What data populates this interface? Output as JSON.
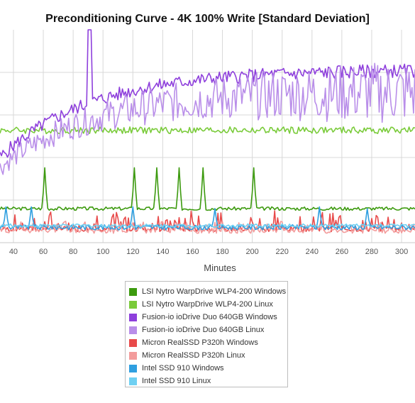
{
  "chart_data": {
    "type": "line",
    "title": "Preconditioning Curve - 4K 100% Write [Standard Deviation]",
    "xlabel": "Minutes",
    "ylabel": "",
    "x_ticks": [
      40,
      60,
      80,
      100,
      120,
      140,
      160,
      180,
      200,
      220,
      240,
      260,
      280,
      300
    ],
    "xlim": [
      31,
      309
    ],
    "grid": true,
    "legend_position": "bottom",
    "series": [
      {
        "name": "LSI Nytro WarpDrive WLP4-200 Windows",
        "color": "#3c9a0e",
        "profile": "spiky_flat",
        "base": 40,
        "noise": 2,
        "spikes": [
          [
            61,
            88
          ],
          [
            121,
            88
          ],
          [
            136,
            88
          ],
          [
            151,
            88
          ],
          [
            167,
            88
          ],
          [
            201,
            88
          ]
        ]
      },
      {
        "name": "LSI Nytro WarpDrive WLP4-200 Linux",
        "color": "#7acb3a",
        "profile": "flat",
        "base": 132,
        "noise": 4
      },
      {
        "name": "Fusion-io ioDrive Duo 640GB Windows",
        "color": "#8e3fdc",
        "profile": "rising",
        "start": 100,
        "end": 203,
        "noise": 8,
        "spike_at": 91,
        "spike_top": 250
      },
      {
        "name": "Fusion-io ioDrive Duo 640GB Linux",
        "color": "#b98ee9",
        "profile": "rising_noisy",
        "start": 88,
        "end": 178,
        "noise": 28
      },
      {
        "name": "Micron RealSSD P320h Windows",
        "color": "#e84a4a",
        "profile": "noisy_low",
        "base": 16,
        "noise": 20
      },
      {
        "name": "Micron RealSSD P320h Linux",
        "color": "#f39c9c",
        "profile": "noisy_low",
        "base": 14,
        "noise": 10
      },
      {
        "name": "Intel SSD 910 Windows",
        "color": "#2f9fe0",
        "profile": "spiky_low",
        "base": 18,
        "noise": 3,
        "spikes": [
          [
            35,
            42
          ],
          [
            52,
            42
          ],
          [
            120,
            42
          ],
          [
            175,
            40
          ],
          [
            245,
            42
          ],
          [
            277,
            40
          ]
        ]
      },
      {
        "name": "Intel SSD 910 Linux",
        "color": "#6fd0f2",
        "profile": "flat",
        "base": 20,
        "noise": 2
      }
    ]
  }
}
